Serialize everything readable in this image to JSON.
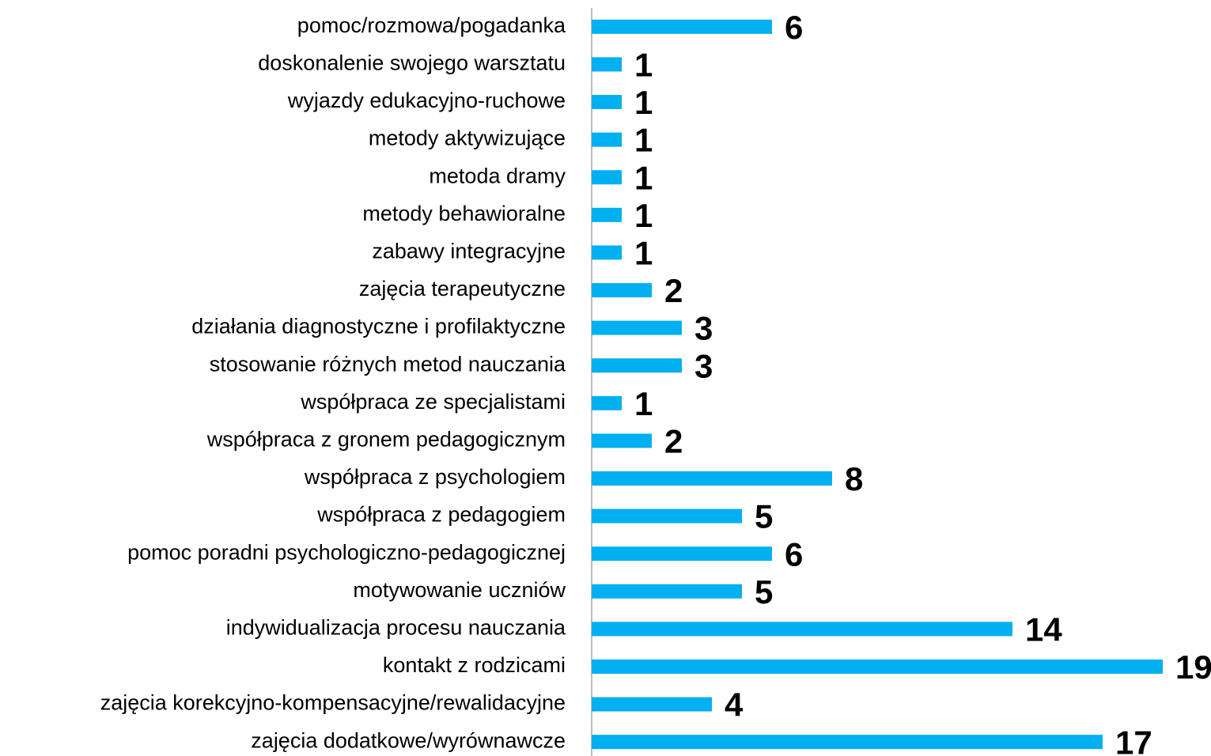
{
  "chart_data": {
    "type": "bar",
    "orientation": "horizontal",
    "categories": [
      "pomoc/rozmowa/pogadanka",
      "doskonalenie swojego warsztatu",
      "wyjazdy edukacyjno-ruchowe",
      "metody aktywizujące",
      "metoda dramy",
      "metody behawioralne",
      "zabawy integracyjne",
      "zajęcia terapeutyczne",
      "działania diagnostyczne i profilaktyczne",
      "stosowanie różnych metod nauczania",
      "współpraca ze specjalistami",
      "współpraca z gronem pedagogicznym",
      "współpraca z psychologiem",
      "współpraca z pedagogiem",
      "pomoc poradni psychologiczno-pedagogicznej",
      "motywowanie uczniów",
      "indywidualizacja procesu nauczania",
      "kontakt z rodzicami",
      "zajęcia korekcyjno-kompensacyjne/rewalidacyjne ",
      "zajęcia dodatkowe/wyrównawcze"
    ],
    "values": [
      6,
      1,
      1,
      1,
      1,
      1,
      1,
      2,
      3,
      3,
      1,
      2,
      8,
      5,
      6,
      5,
      14,
      19,
      4,
      17
    ],
    "color": "#00b0f0",
    "xlim": [
      0,
      19
    ]
  }
}
